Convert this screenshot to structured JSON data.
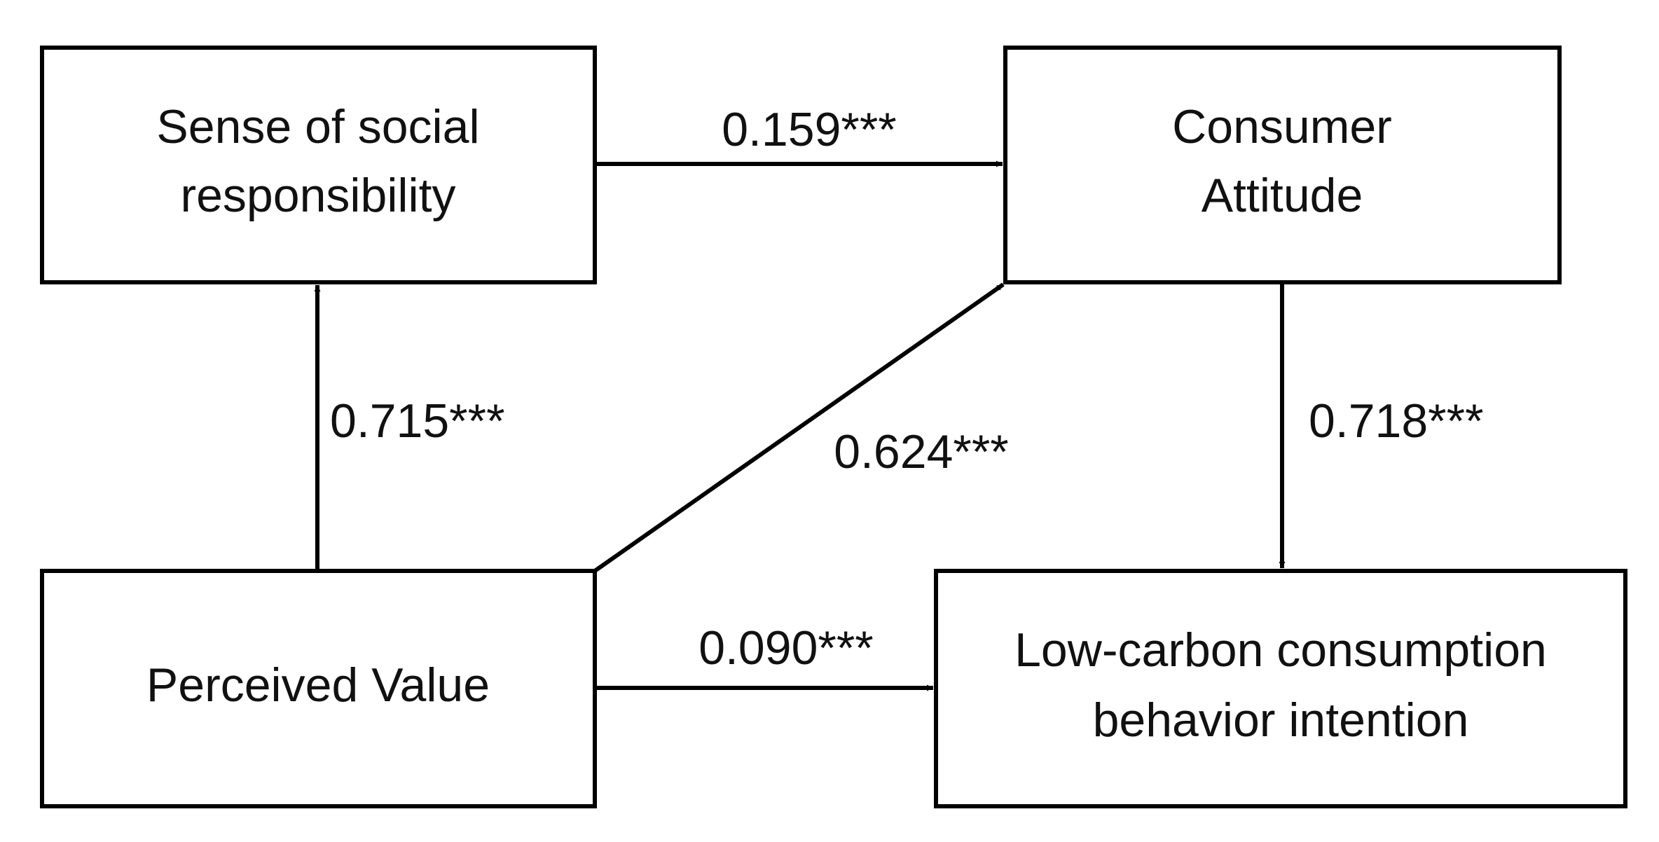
{
  "nodes": [
    {
      "lines": [
        "Sense of social",
        "responsibility"
      ]
    },
    {
      "lines": [
        "Consumer",
        "Attitude"
      ]
    },
    {
      "lines": [
        "Perceived Value"
      ]
    },
    {
      "lines": [
        "Low-carbon consumption",
        "behavior intention"
      ]
    }
  ],
  "edges": [
    {
      "label": "0.159***"
    },
    {
      "label": "0.715***"
    },
    {
      "label": "0.624***"
    },
    {
      "label": "0.718***"
    },
    {
      "label": "0.090***"
    }
  ]
}
